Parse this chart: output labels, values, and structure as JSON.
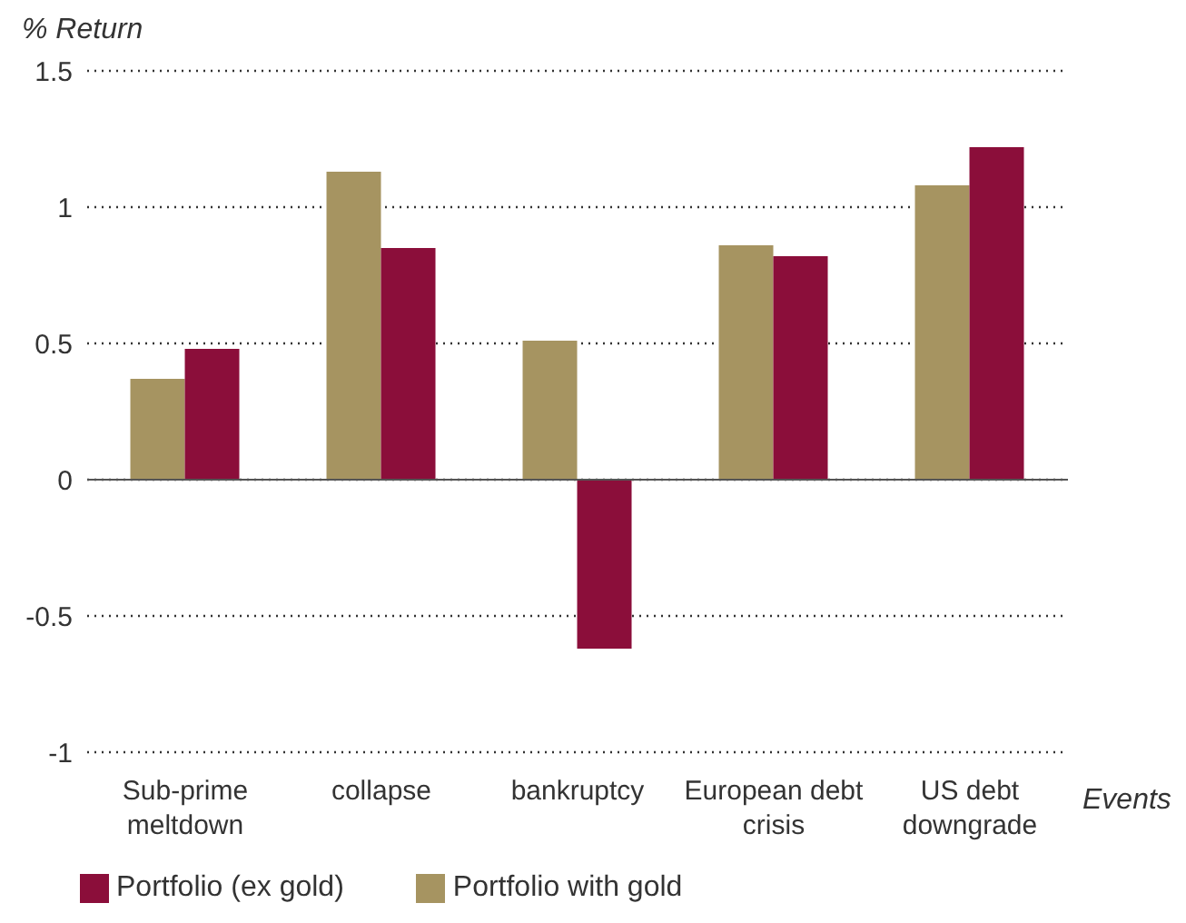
{
  "chart_data": {
    "type": "bar",
    "ylabel": "% Return",
    "xlabel": "Events",
    "categories": [
      "Sub-prime meltdown",
      "collapse",
      "bankruptcy",
      "European debt crisis",
      "US debt downgrade"
    ],
    "series": [
      {
        "name": "Portfolio with gold",
        "color": "#a69461",
        "values": [
          0.37,
          1.13,
          0.51,
          0.86,
          1.08
        ]
      },
      {
        "name": "Portfolio (ex gold)",
        "color": "#8b0e3a",
        "values": [
          0.48,
          0.85,
          -0.62,
          0.82,
          1.22
        ]
      }
    ],
    "ylim": [
      -1,
      1.5
    ],
    "yticks": [
      -1,
      -0.5,
      0,
      0.5,
      1,
      1.5
    ],
    "grid": "y",
    "legend": "bottom left"
  }
}
